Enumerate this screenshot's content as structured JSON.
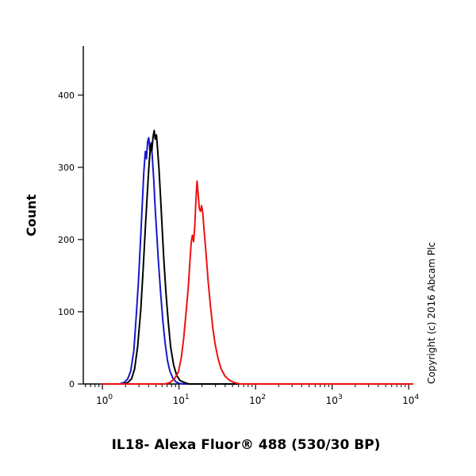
{
  "figure": {
    "ylabel": "Count",
    "xlabel": "IL18- Alexa Fluor® 488 (530/30 BP)",
    "copyright": "Copyright (c) 2016 Abcam Plc"
  },
  "chart_data": {
    "type": "line",
    "subtype": "flow-cytometry-histogram",
    "title": "",
    "xlabel": "IL18- Alexa Fluor® 488 (530/30 BP)",
    "ylabel": "Count",
    "x_scale": "log10",
    "x_axis_decades": [
      0,
      1,
      2,
      3,
      4
    ],
    "xlim_log10": [
      -0.25,
      4.05
    ],
    "ylim": [
      0,
      468
    ],
    "y_ticks": [
      0,
      100,
      200,
      300,
      400
    ],
    "grid": false,
    "legend": "none",
    "annotations": [
      "Copyright (c) 2016 Abcam Plc"
    ],
    "series": [
      {
        "name": "blue-control",
        "color": "#1818cc",
        "peak": {
          "x_log10": 0.605,
          "count": 341
        },
        "points": [
          [
            0.0,
            0
          ],
          [
            0.22,
            0
          ],
          [
            0.28,
            2
          ],
          [
            0.33,
            7
          ],
          [
            0.37,
            18
          ],
          [
            0.41,
            46
          ],
          [
            0.44,
            92
          ],
          [
            0.47,
            142
          ],
          [
            0.5,
            205
          ],
          [
            0.52,
            248
          ],
          [
            0.54,
            292
          ],
          [
            0.56,
            322
          ],
          [
            0.575,
            312
          ],
          [
            0.59,
            336
          ],
          [
            0.605,
            341
          ],
          [
            0.62,
            323
          ],
          [
            0.635,
            334
          ],
          [
            0.65,
            316
          ],
          [
            0.67,
            283
          ],
          [
            0.69,
            241
          ],
          [
            0.71,
            206
          ],
          [
            0.73,
            171
          ],
          [
            0.76,
            126
          ],
          [
            0.79,
            86
          ],
          [
            0.82,
            55
          ],
          [
            0.85,
            32
          ],
          [
            0.88,
            18
          ],
          [
            0.92,
            8
          ],
          [
            0.96,
            3
          ],
          [
            1.0,
            1
          ],
          [
            1.06,
            0
          ],
          [
            4.0,
            0
          ]
        ]
      },
      {
        "name": "black-control",
        "color": "#000000",
        "peak": {
          "x_log10": 0.675,
          "count": 351
        },
        "points": [
          [
            0.0,
            0
          ],
          [
            0.27,
            0
          ],
          [
            0.33,
            2
          ],
          [
            0.38,
            7
          ],
          [
            0.42,
            21
          ],
          [
            0.46,
            52
          ],
          [
            0.5,
            102
          ],
          [
            0.53,
            156
          ],
          [
            0.56,
            216
          ],
          [
            0.59,
            272
          ],
          [
            0.61,
            306
          ],
          [
            0.63,
            331
          ],
          [
            0.645,
            323
          ],
          [
            0.66,
            341
          ],
          [
            0.675,
            351
          ],
          [
            0.69,
            339
          ],
          [
            0.705,
            345
          ],
          [
            0.72,
            326
          ],
          [
            0.74,
            296
          ],
          [
            0.76,
            256
          ],
          [
            0.78,
            216
          ],
          [
            0.8,
            176
          ],
          [
            0.83,
            126
          ],
          [
            0.86,
            86
          ],
          [
            0.89,
            52
          ],
          [
            0.93,
            26
          ],
          [
            0.97,
            12
          ],
          [
            1.01,
            5
          ],
          [
            1.07,
            2
          ],
          [
            1.13,
            0
          ],
          [
            4.0,
            0
          ]
        ]
      },
      {
        "name": "red-il18-stained",
        "color": "#ee1111",
        "peak": {
          "x_log10": 1.235,
          "count": 281
        },
        "points": [
          [
            0.0,
            0
          ],
          [
            0.82,
            0
          ],
          [
            0.88,
            2
          ],
          [
            0.94,
            7
          ],
          [
            0.99,
            16
          ],
          [
            1.03,
            36
          ],
          [
            1.06,
            62
          ],
          [
            1.09,
            96
          ],
          [
            1.12,
            132
          ],
          [
            1.14,
            166
          ],
          [
            1.16,
            197
          ],
          [
            1.175,
            206
          ],
          [
            1.19,
            197
          ],
          [
            1.205,
            216
          ],
          [
            1.22,
            253
          ],
          [
            1.235,
            281
          ],
          [
            1.25,
            263
          ],
          [
            1.265,
            243
          ],
          [
            1.28,
            239
          ],
          [
            1.295,
            247
          ],
          [
            1.31,
            237
          ],
          [
            1.325,
            216
          ],
          [
            1.34,
            197
          ],
          [
            1.36,
            171
          ],
          [
            1.38,
            143
          ],
          [
            1.41,
            109
          ],
          [
            1.44,
            79
          ],
          [
            1.47,
            56
          ],
          [
            1.51,
            35
          ],
          [
            1.55,
            21
          ],
          [
            1.6,
            11
          ],
          [
            1.66,
            5
          ],
          [
            1.72,
            2
          ],
          [
            1.8,
            0
          ],
          [
            4.05,
            0
          ]
        ]
      }
    ]
  }
}
